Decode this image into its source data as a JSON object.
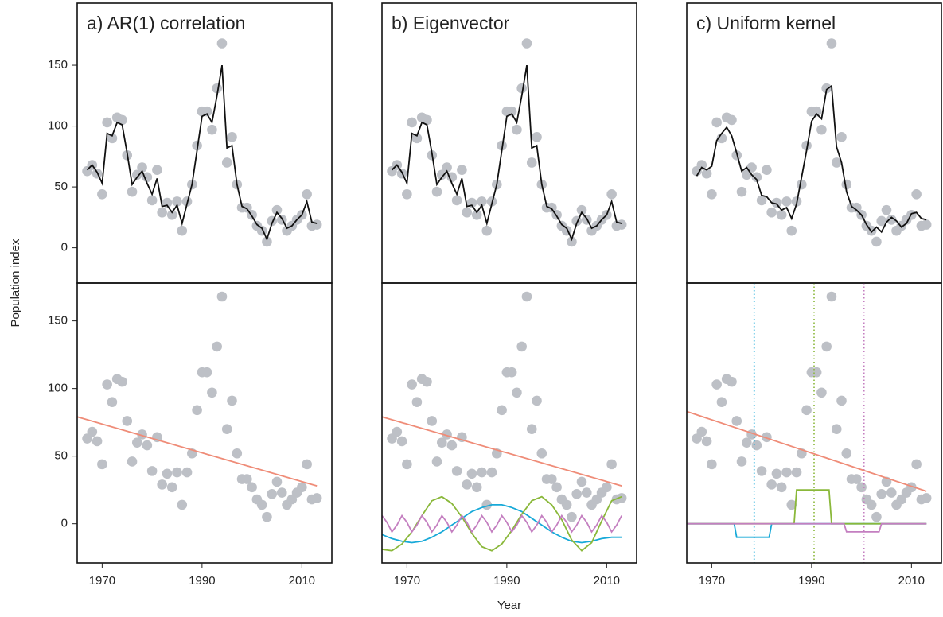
{
  "chart_data": {
    "type": "scatter",
    "x_label": "Year",
    "y_label": "Population index",
    "x": [
      1967,
      1968,
      1969,
      1970,
      1971,
      1972,
      1973,
      1974,
      1975,
      1976,
      1977,
      1978,
      1979,
      1980,
      1981,
      1982,
      1983,
      1984,
      1985,
      1986,
      1987,
      1988,
      1989,
      1990,
      1991,
      1992,
      1993,
      1994,
      1995,
      1996,
      1997,
      1998,
      1999,
      2000,
      2001,
      2002,
      2003,
      2004,
      2005,
      2006,
      2007,
      2008,
      2009,
      2010,
      2011,
      2012,
      2013
    ],
    "values": [
      63,
      68,
      61,
      44,
      103,
      90,
      107,
      105,
      76,
      46,
      60,
      66,
      58,
      39,
      64,
      29,
      37,
      27,
      38,
      14,
      38,
      52,
      84,
      112,
      112,
      97,
      131,
      168,
      70,
      91,
      52,
      33,
      33,
      27,
      18,
      14,
      5,
      22,
      31,
      23,
      14,
      18,
      23,
      27,
      44,
      18,
      19
    ],
    "color": "#bdc0c6",
    "xlim": [
      1965,
      2016
    ],
    "xticks": [
      1970,
      1990,
      2010
    ],
    "rows": [
      {
        "ylim": [
          -29,
          201
        ],
        "yticks": [
          0,
          50,
          100,
          150
        ]
      },
      {
        "ylim": [
          -29,
          178
        ],
        "yticks": [
          0,
          50,
          100,
          150
        ]
      }
    ],
    "panels": [
      {
        "title": "a) AR(1) correlation",
        "fit": {
          "color": "#111111",
          "values": [
            64,
            68,
            62,
            53,
            94,
            92,
            103,
            101,
            78,
            52,
            58,
            63,
            53,
            44,
            57,
            34,
            35,
            29,
            35,
            20,
            36,
            52,
            80,
            108,
            110,
            103,
            125,
            150,
            82,
            84,
            52,
            34,
            32,
            26,
            19,
            16,
            7,
            20,
            29,
            24,
            16,
            18,
            23,
            27,
            38,
            21,
            20
          ]
        },
        "trend": {
          "color": "#ef8c78",
          "x": [
            1965,
            2013
          ],
          "values": [
            79,
            28
          ]
        },
        "components": []
      },
      {
        "title": "b) Eigenvector",
        "fit": {
          "color": "#111111",
          "values": [
            64,
            68,
            62,
            53,
            94,
            92,
            103,
            101,
            78,
            52,
            58,
            63,
            53,
            44,
            57,
            34,
            35,
            29,
            35,
            20,
            36,
            52,
            80,
            108,
            110,
            103,
            125,
            150,
            82,
            84,
            52,
            34,
            32,
            26,
            19,
            16,
            7,
            20,
            29,
            24,
            16,
            18,
            23,
            27,
            38,
            21,
            20
          ]
        },
        "trend": {
          "color": "#ef8c78",
          "x": [
            1965,
            2013
          ],
          "values": [
            79,
            28
          ]
        },
        "components": [
          {
            "color": "#17a9d8",
            "x": [
              1965,
              1967,
              1969,
              1971,
              1973,
              1975,
              1977,
              1979,
              1981,
              1983,
              1985,
              1987,
              1989,
              1991,
              1993,
              1995,
              1997,
              1999,
              2001,
              2003,
              2005,
              2007,
              2009,
              2011,
              2013
            ],
            "values": [
              -8,
              -11,
              -13,
              -14,
              -13,
              -10,
              -6,
              -1,
              4,
              9,
              12,
              14,
              14,
              12,
              9,
              4,
              -1,
              -6,
              -10,
              -13,
              -14,
              -13,
              -11,
              -10,
              -10
            ]
          },
          {
            "color": "#8ab83a",
            "x": [
              1965,
              1967,
              1969,
              1971,
              1973,
              1975,
              1977,
              1979,
              1981,
              1983,
              1985,
              1987,
              1989,
              1991,
              1993,
              1995,
              1997,
              1999,
              2001,
              2003,
              2005,
              2007,
              2009,
              2011,
              2013
            ],
            "values": [
              -19,
              -20,
              -15,
              -6,
              6,
              17,
              20,
              15,
              5,
              -7,
              -17,
              -20,
              -15,
              -5,
              7,
              17,
              20,
              14,
              3,
              -12,
              -20,
              -14,
              2,
              17,
              20
            ]
          },
          {
            "color": "#c47fc0",
            "x": [
              1965,
              1966,
              1967,
              1968,
              1969,
              1970,
              1971,
              1972,
              1973,
              1974,
              1975,
              1976,
              1977,
              1978,
              1979,
              1980,
              1981,
              1982,
              1983,
              1984,
              1985,
              1986,
              1987,
              1988,
              1989,
              1990,
              1991,
              1992,
              1993,
              1994,
              1995,
              1996,
              1997,
              1998,
              1999,
              2000,
              2001,
              2002,
              2003,
              2004,
              2005,
              2006,
              2007,
              2008,
              2009,
              2010,
              2011,
              2012,
              2013
            ],
            "values": [
              6,
              1,
              -6,
              -1,
              6,
              1,
              -6,
              -1,
              6,
              1,
              -6,
              -1,
              6,
              1,
              -6,
              -1,
              6,
              1,
              -6,
              -1,
              6,
              1,
              -6,
              -1,
              6,
              1,
              -6,
              -1,
              6,
              1,
              -6,
              -1,
              6,
              1,
              -6,
              -1,
              6,
              1,
              -6,
              -1,
              6,
              1,
              -6,
              -1,
              6,
              1,
              -6,
              -1,
              6
            ]
          }
        ]
      },
      {
        "title": "c) Uniform kernel",
        "fit": {
          "color": "#111111",
          "values": [
            59,
            66,
            64,
            67,
            88,
            94,
            99,
            92,
            78,
            63,
            66,
            60,
            56,
            43,
            42,
            37,
            36,
            31,
            33,
            24,
            36,
            58,
            80,
            104,
            110,
            106,
            130,
            133,
            83,
            70,
            46,
            34,
            31,
            27,
            19,
            13,
            17,
            13,
            21,
            25,
            22,
            17,
            20,
            28,
            29,
            24,
            23
          ]
        },
        "trend": {
          "color": "#ef8c78",
          "x": [
            1965,
            2013
          ],
          "values": [
            83,
            24
          ]
        },
        "components": [
          {
            "color": "#17a9d8",
            "center": 1978.5,
            "x": [
              1965,
              1974.5,
              1975,
              1981.5,
              1982,
              2013
            ],
            "values": [
              0,
              0,
              -10,
              -10,
              0,
              0
            ]
          },
          {
            "color": "#8ab83a",
            "center": 1990.5,
            "x": [
              1965,
              1986.5,
              1987,
              1993.5,
              1994,
              2013
            ],
            "values": [
              0,
              0,
              25,
              25,
              0,
              0
            ]
          },
          {
            "color": "#c47fc0",
            "center": 2000.5,
            "x": [
              1965,
              1996.5,
              1997,
              2003.5,
              2004,
              2013
            ],
            "values": [
              0,
              0,
              -6,
              -6,
              0,
              0
            ]
          }
        ]
      }
    ]
  }
}
